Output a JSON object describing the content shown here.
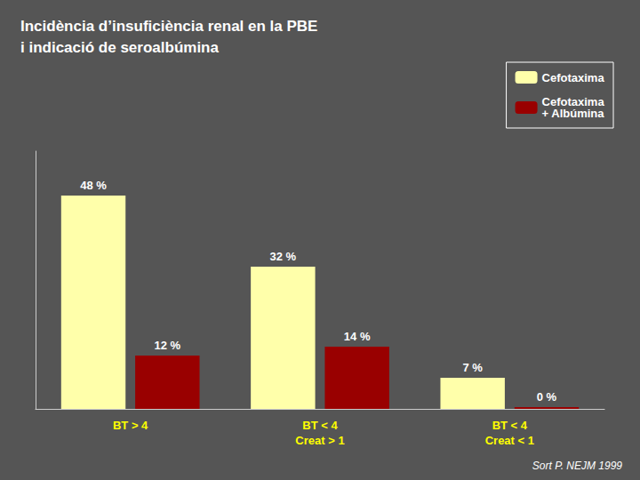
{
  "chart_data": {
    "type": "bar",
    "title": "Incidència d’insuficiència renal en la PBE\ni indicació de seroalbúmina",
    "categories": [
      "BT > 4",
      "BT < 4\nCreat > 1",
      "BT < 4\nCreat < 1"
    ],
    "series": [
      {
        "name": "Cefotaxima",
        "color": "#ffffaa",
        "values": [
          48,
          32,
          7
        ],
        "value_labels": [
          "48 %",
          "32 %",
          "7 %"
        ]
      },
      {
        "name": "Cefotaxima\n+ Albúmina",
        "color": "#990000",
        "values": [
          12,
          14,
          0.4
        ],
        "value_labels": [
          "12 %",
          "14 %",
          "0 %"
        ]
      }
    ],
    "ylim": [
      0,
      58
    ],
    "tick_labels": "x",
    "grid": false,
    "legend": "upper right",
    "data_labels": true,
    "annotation": "Sort P. NEJM 1999"
  }
}
